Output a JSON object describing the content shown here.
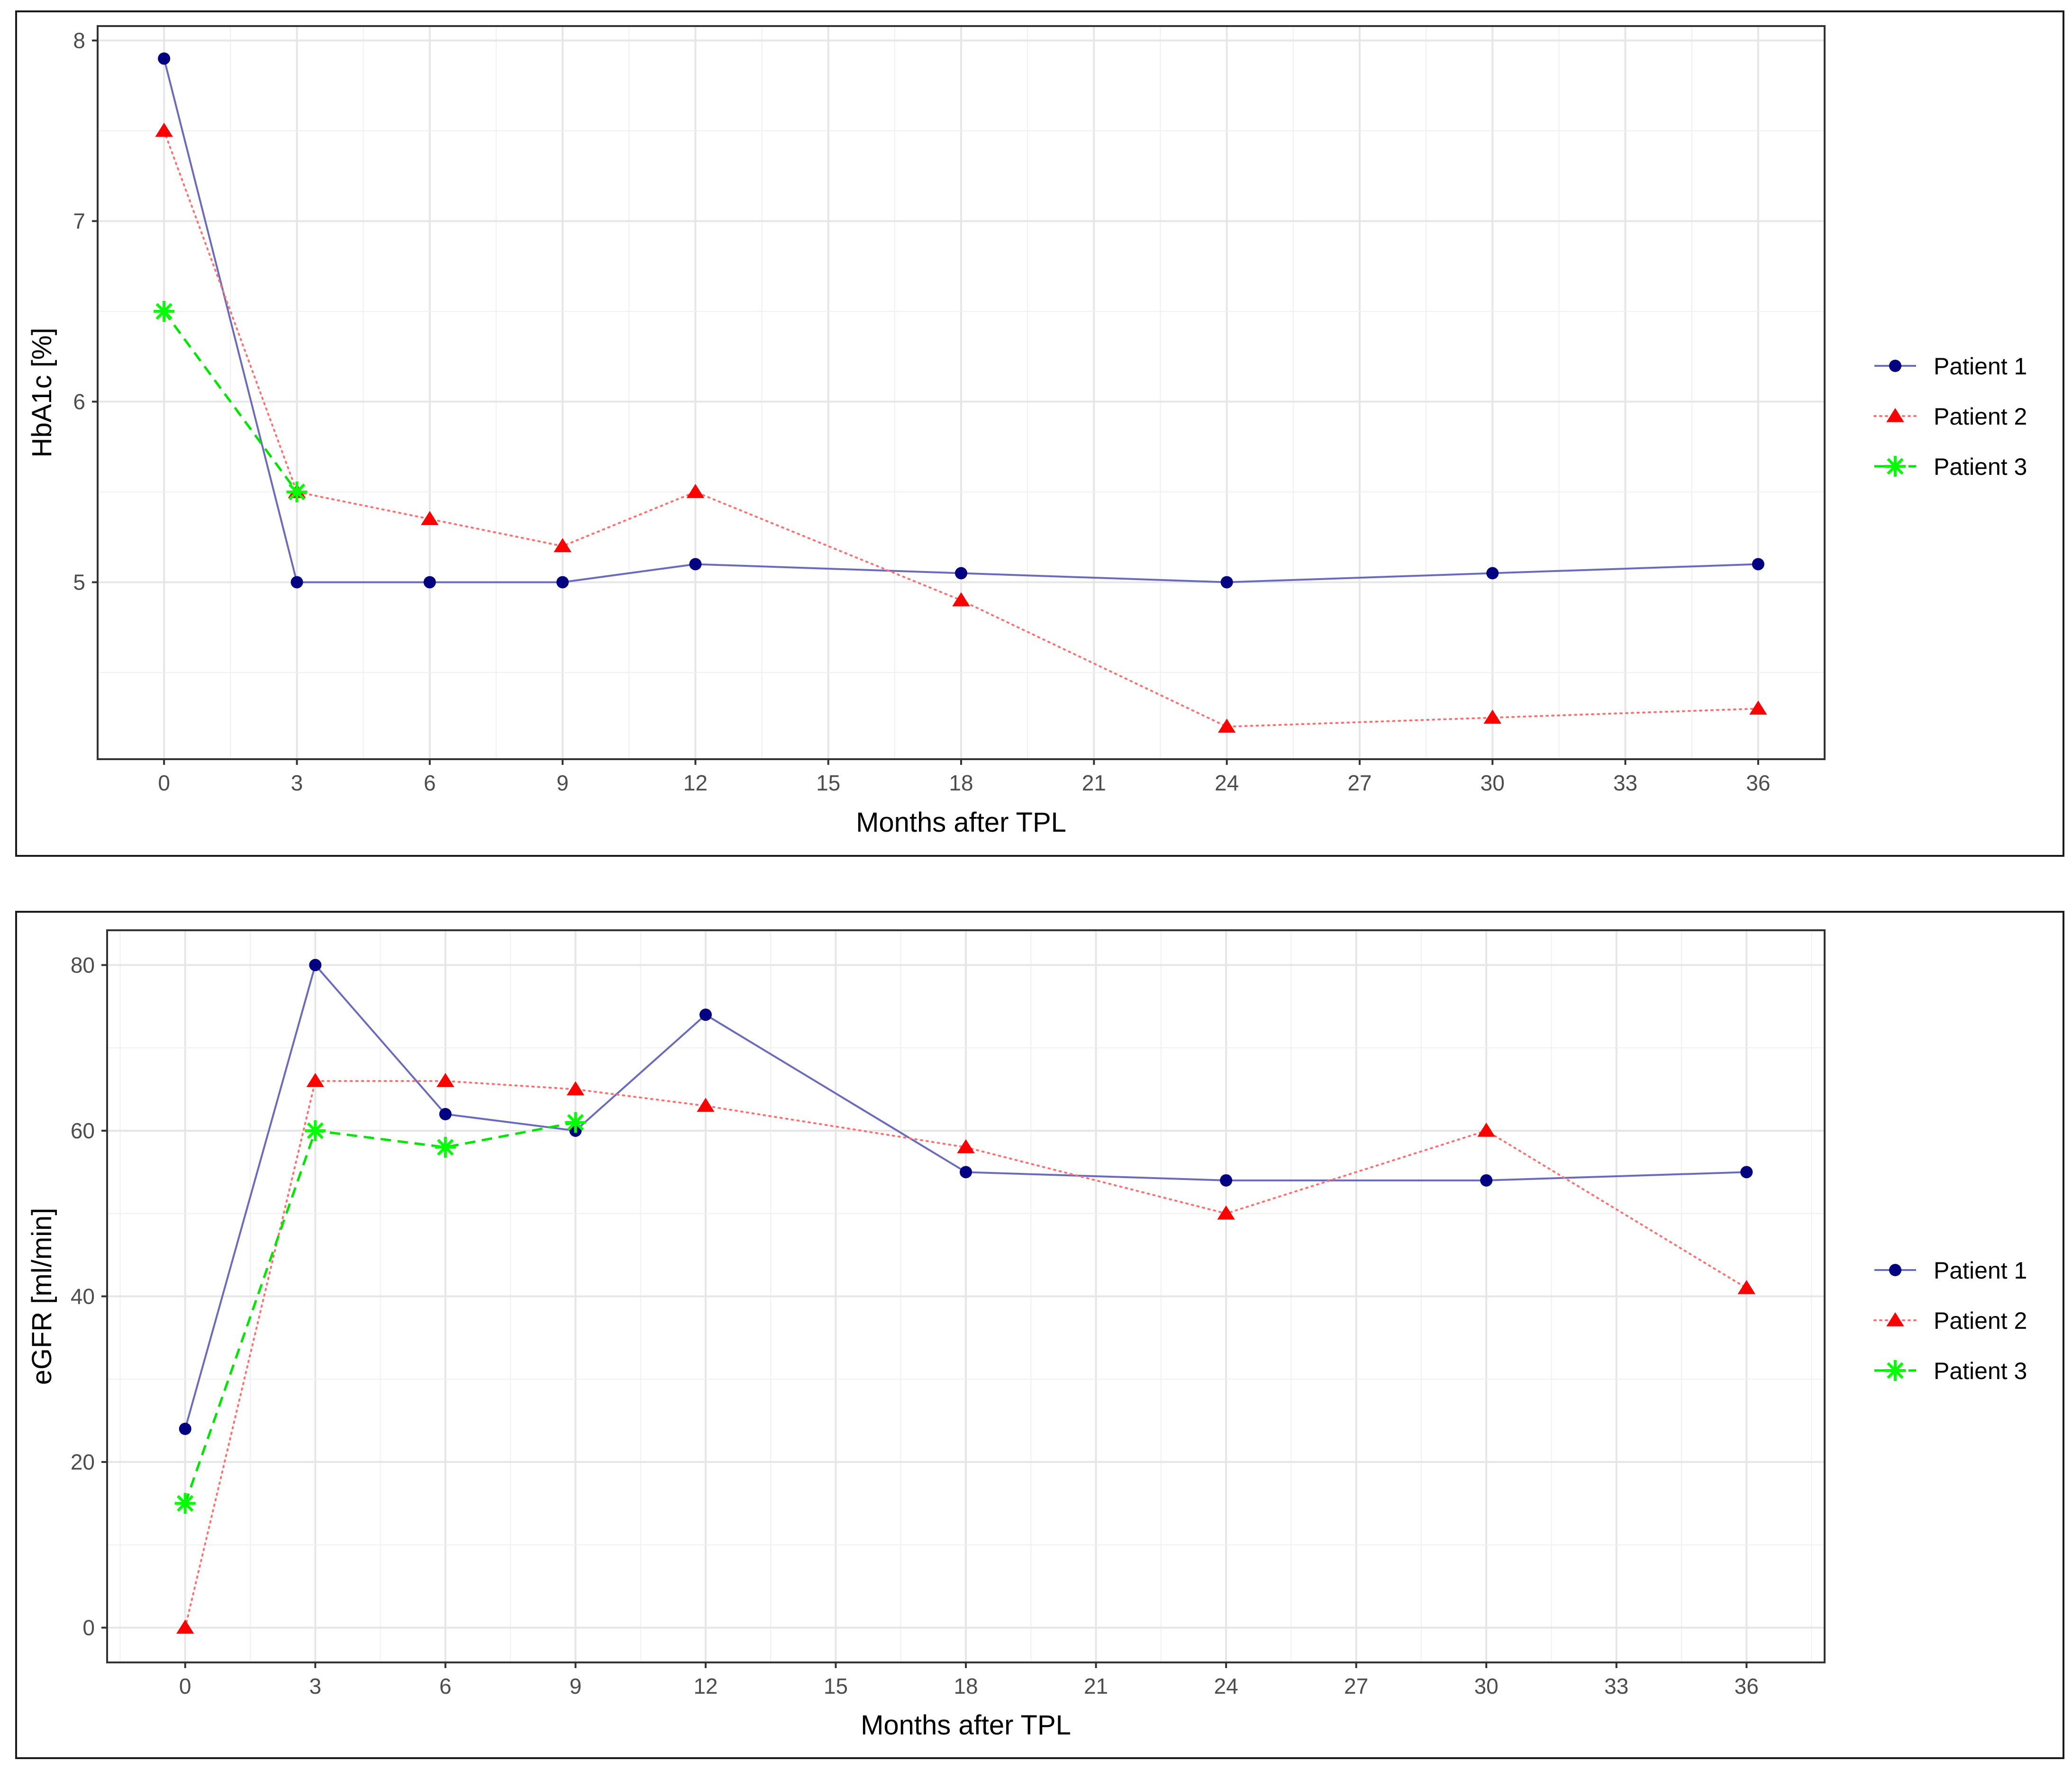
{
  "chart_data": [
    {
      "type": "line",
      "xlabel": "Months after TPL",
      "ylabel": "HbA1c [%]",
      "xlim": [
        -1.5,
        37.5
      ],
      "ylim": [
        4.02,
        8.08
      ],
      "xticks": [
        0,
        3,
        6,
        9,
        12,
        15,
        18,
        21,
        24,
        27,
        30,
        33,
        36
      ],
      "yticks": [
        5,
        6,
        7,
        8
      ],
      "grid": true,
      "legend_position": "right",
      "series": [
        {
          "name": "Patient 1",
          "color": "#000080",
          "line_color": "#6b6bbd",
          "marker": "circle",
          "linestyle": "solid",
          "x": [
            0,
            3,
            6,
            9,
            12,
            18,
            24,
            30,
            36
          ],
          "y": [
            7.9,
            5.0,
            5.0,
            5.0,
            5.1,
            5.05,
            5.0,
            5.05,
            5.1
          ]
        },
        {
          "name": "Patient 2",
          "color": "#ff0000",
          "line_color": "#ff7070",
          "marker": "triangle",
          "linestyle": "dotted",
          "x": [
            0,
            3,
            6,
            9,
            12,
            18,
            24,
            30,
            36
          ],
          "y": [
            7.5,
            5.5,
            5.35,
            5.2,
            5.5,
            4.9,
            4.2,
            4.25,
            4.3
          ]
        },
        {
          "name": "Patient 3",
          "color": "#00ff00",
          "line_color": "#00e600",
          "marker": "asterisk",
          "linestyle": "dashed",
          "x": [
            0,
            3
          ],
          "y": [
            6.5,
            5.5
          ]
        }
      ]
    },
    {
      "type": "line",
      "xlabel": "Months after TPL",
      "ylabel": "eGFR [ml/min]",
      "xlim": [
        -1.8,
        37.8
      ],
      "ylim": [
        -4.2,
        84.2
      ],
      "xticks": [
        0,
        3,
        6,
        9,
        12,
        15,
        18,
        21,
        24,
        27,
        30,
        33,
        36
      ],
      "yticks": [
        0,
        20,
        40,
        60,
        80
      ],
      "grid": true,
      "legend_position": "right",
      "series": [
        {
          "name": "Patient 1",
          "color": "#000080",
          "line_color": "#6b6bbd",
          "marker": "circle",
          "linestyle": "solid",
          "x": [
            0,
            3,
            6,
            9,
            12,
            18,
            24,
            30,
            36
          ],
          "y": [
            24,
            80,
            62,
            60,
            74,
            55,
            54,
            54,
            55
          ]
        },
        {
          "name": "Patient 2",
          "color": "#ff0000",
          "line_color": "#ff7070",
          "marker": "triangle",
          "linestyle": "dotted",
          "x": [
            0,
            3,
            6,
            9,
            12,
            18,
            24,
            30,
            36
          ],
          "y": [
            0,
            66,
            66,
            65,
            63,
            58,
            50,
            60,
            41
          ]
        },
        {
          "name": "Patient 3",
          "color": "#00ff00",
          "line_color": "#00e600",
          "marker": "asterisk",
          "linestyle": "dashed",
          "x": [
            0,
            3,
            6,
            9
          ],
          "y": [
            15,
            60,
            58,
            61
          ]
        }
      ]
    }
  ]
}
